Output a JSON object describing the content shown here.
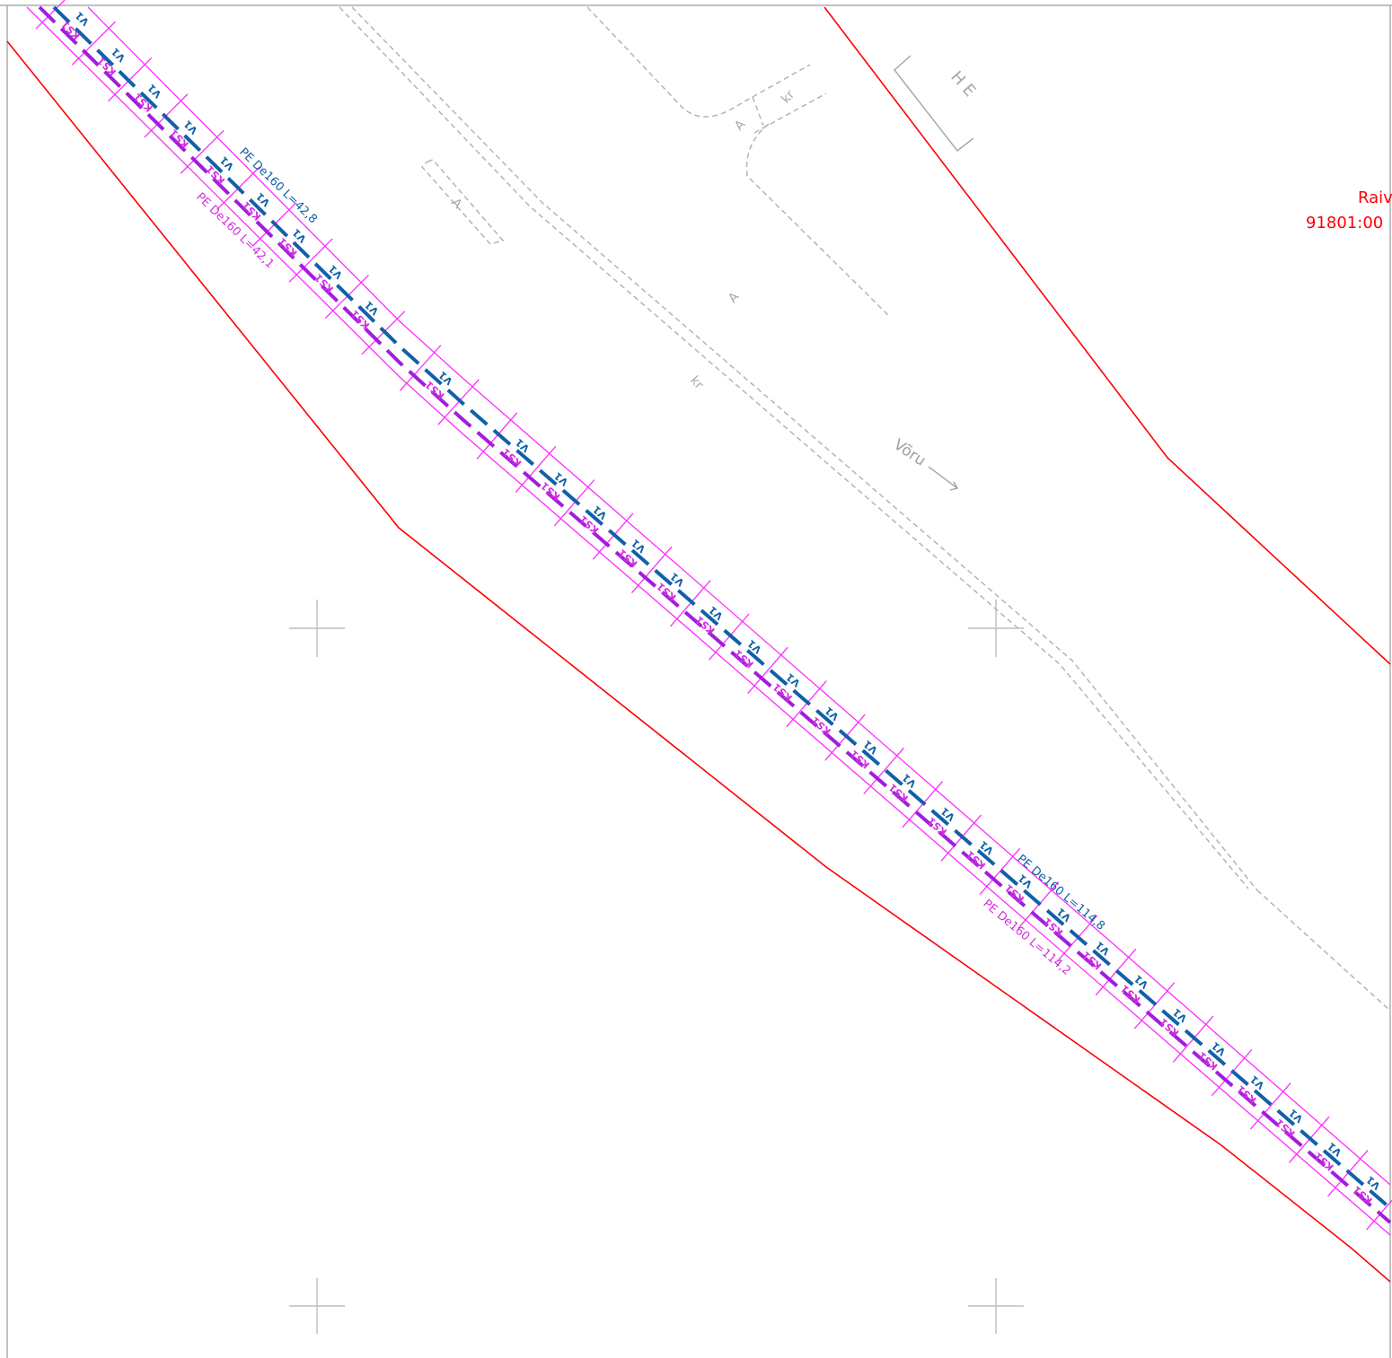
{
  "map": {
    "road_labels": {
      "a1": "A",
      "a2": "A",
      "a3": "A",
      "kr1": "kr",
      "kr2": "kr",
      "he": "H E",
      "voru": "Võru"
    },
    "parcel_label": {
      "name": "Raiv",
      "code": "91801:00"
    },
    "pipes": {
      "water_code": "V1",
      "sewer_code": "KS1",
      "water_label_1": "PE De160 L=42,8",
      "sewer_label_1": "PE De160 L=42,1",
      "water_label_2": "PE De160 L=114,8",
      "sewer_label_2": "PE De160 L=114,2"
    },
    "colors": {
      "water_pipe": "#1060a8",
      "sewer_pipe": "#a21cde",
      "corridor": "#ff2bff",
      "boundary": "#ff0000",
      "roads": "#b4b4b4"
    }
  }
}
